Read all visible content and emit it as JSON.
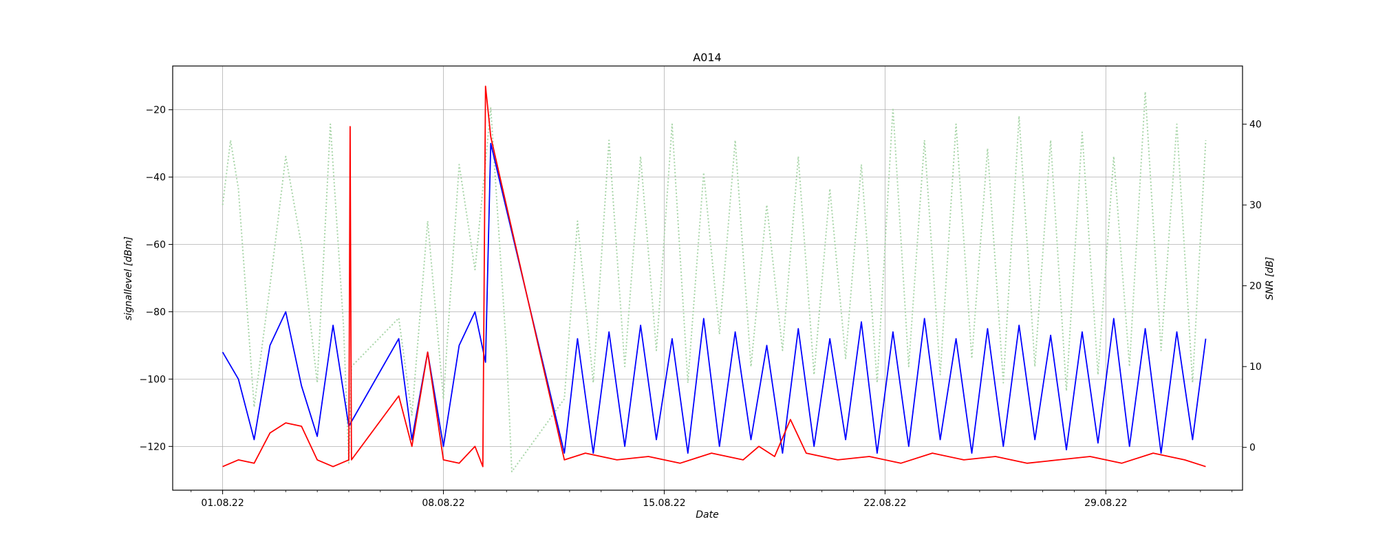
{
  "chart_data": {
    "type": "line",
    "title": "A014",
    "xlabel": "Date",
    "ylabel_left": "signallevel [dBm]",
    "ylabel_right": "SNR [dB]",
    "x_range": [
      "2022-07-30T10:00",
      "2022-09-02T08:00"
    ],
    "ylim_left": [
      -133,
      -7
    ],
    "ylim_right": [
      -5.3,
      47.2
    ],
    "x_ticks": [
      {
        "date": "2022-08-01",
        "label": "01.08.22"
      },
      {
        "date": "2022-08-08",
        "label": "08.08.22"
      },
      {
        "date": "2022-08-15",
        "label": "15.08.22"
      },
      {
        "date": "2022-08-22",
        "label": "22.08.22"
      },
      {
        "date": "2022-08-29",
        "label": "29.08.22"
      }
    ],
    "y_ticks_left": [
      -120,
      -100,
      -80,
      -60,
      -40,
      -20
    ],
    "y_ticks_right": [
      0,
      10,
      20,
      30,
      40
    ],
    "grid": true,
    "series": [
      {
        "color": "#a8d5a8",
        "dash": "dotted",
        "axis": "right",
        "points": [
          [
            "2022-08-01T00:00",
            30
          ],
          [
            "2022-08-01T06:00",
            38
          ],
          [
            "2022-08-01T12:00",
            32
          ],
          [
            "2022-08-02T00:00",
            5
          ],
          [
            "2022-08-02T12:00",
            20
          ],
          [
            "2022-08-03T00:00",
            36
          ],
          [
            "2022-08-03T12:00",
            25
          ],
          [
            "2022-08-04T00:00",
            8
          ],
          [
            "2022-08-04T10:00",
            40
          ],
          [
            "2022-08-04T20:00",
            15
          ],
          [
            "2022-08-05T00:00",
            -2
          ],
          [
            "2022-08-05T02:00",
            10
          ],
          [
            "2022-08-06T14:00",
            16
          ],
          [
            "2022-08-07T00:00",
            4
          ],
          [
            "2022-08-07T12:00",
            28
          ],
          [
            "2022-08-08T00:00",
            6
          ],
          [
            "2022-08-08T12:00",
            35
          ],
          [
            "2022-08-09T00:00",
            22
          ],
          [
            "2022-08-09T12:00",
            42
          ],
          [
            "2022-08-10T00:00",
            12
          ],
          [
            "2022-08-10T04:00",
            -3
          ],
          [
            "2022-08-11T20:00",
            6
          ],
          [
            "2022-08-12T06:00",
            28
          ],
          [
            "2022-08-12T18:00",
            8
          ],
          [
            "2022-08-13T06:00",
            38
          ],
          [
            "2022-08-13T18:00",
            10
          ],
          [
            "2022-08-14T06:00",
            36
          ],
          [
            "2022-08-14T18:00",
            12
          ],
          [
            "2022-08-15T06:00",
            40
          ],
          [
            "2022-08-15T18:00",
            8
          ],
          [
            "2022-08-16T06:00",
            34
          ],
          [
            "2022-08-16T18:00",
            14
          ],
          [
            "2022-08-17T06:00",
            38
          ],
          [
            "2022-08-17T18:00",
            10
          ],
          [
            "2022-08-18T06:00",
            30
          ],
          [
            "2022-08-18T18:00",
            12
          ],
          [
            "2022-08-19T06:00",
            36
          ],
          [
            "2022-08-19T18:00",
            9
          ],
          [
            "2022-08-20T06:00",
            32
          ],
          [
            "2022-08-20T18:00",
            11
          ],
          [
            "2022-08-21T06:00",
            35
          ],
          [
            "2022-08-21T18:00",
            8
          ],
          [
            "2022-08-22T06:00",
            42
          ],
          [
            "2022-08-22T18:00",
            10
          ],
          [
            "2022-08-23T06:00",
            38
          ],
          [
            "2022-08-23T18:00",
            9
          ],
          [
            "2022-08-24T06:00",
            40
          ],
          [
            "2022-08-24T18:00",
            11
          ],
          [
            "2022-08-25T06:00",
            37
          ],
          [
            "2022-08-25T18:00",
            8
          ],
          [
            "2022-08-26T06:00",
            41
          ],
          [
            "2022-08-26T18:00",
            10
          ],
          [
            "2022-08-27T06:00",
            38
          ],
          [
            "2022-08-27T18:00",
            7
          ],
          [
            "2022-08-28T06:00",
            39
          ],
          [
            "2022-08-28T18:00",
            9
          ],
          [
            "2022-08-29T06:00",
            36
          ],
          [
            "2022-08-29T18:00",
            10
          ],
          [
            "2022-08-30T06:00",
            44
          ],
          [
            "2022-08-30T18:00",
            12
          ],
          [
            "2022-08-31T06:00",
            40
          ],
          [
            "2022-08-31T18:00",
            8
          ],
          [
            "2022-09-01T04:00",
            38
          ]
        ]
      },
      {
        "color": "#0000ff",
        "dash": "solid",
        "axis": "left",
        "points": [
          [
            "2022-08-01T00:00",
            -92
          ],
          [
            "2022-08-01T12:00",
            -100
          ],
          [
            "2022-08-02T00:00",
            -118
          ],
          [
            "2022-08-02T12:00",
            -90
          ],
          [
            "2022-08-03T00:00",
            -80
          ],
          [
            "2022-08-03T12:00",
            -102
          ],
          [
            "2022-08-04T00:00",
            -117
          ],
          [
            "2022-08-04T12:00",
            -84
          ],
          [
            "2022-08-05T00:00",
            -114
          ],
          [
            "2022-08-06T14:00",
            -88
          ],
          [
            "2022-08-07T00:00",
            -118
          ],
          [
            "2022-08-07T12:00",
            -92
          ],
          [
            "2022-08-08T00:00",
            -120
          ],
          [
            "2022-08-08T12:00",
            -90
          ],
          [
            "2022-08-09T00:00",
            -80
          ],
          [
            "2022-08-09T08:00",
            -95
          ],
          [
            "2022-08-09T12:00",
            -30
          ],
          [
            "2022-08-11T20:00",
            -122
          ],
          [
            "2022-08-12T06:00",
            -88
          ],
          [
            "2022-08-12T18:00",
            -122
          ],
          [
            "2022-08-13T06:00",
            -86
          ],
          [
            "2022-08-13T18:00",
            -120
          ],
          [
            "2022-08-14T06:00",
            -84
          ],
          [
            "2022-08-14T18:00",
            -118
          ],
          [
            "2022-08-15T06:00",
            -88
          ],
          [
            "2022-08-15T18:00",
            -122
          ],
          [
            "2022-08-16T06:00",
            -82
          ],
          [
            "2022-08-16T18:00",
            -120
          ],
          [
            "2022-08-17T06:00",
            -86
          ],
          [
            "2022-08-17T18:00",
            -118
          ],
          [
            "2022-08-18T06:00",
            -90
          ],
          [
            "2022-08-18T18:00",
            -122
          ],
          [
            "2022-08-19T06:00",
            -85
          ],
          [
            "2022-08-19T18:00",
            -120
          ],
          [
            "2022-08-20T06:00",
            -88
          ],
          [
            "2022-08-20T18:00",
            -118
          ],
          [
            "2022-08-21T06:00",
            -83
          ],
          [
            "2022-08-21T18:00",
            -122
          ],
          [
            "2022-08-22T06:00",
            -86
          ],
          [
            "2022-08-22T18:00",
            -120
          ],
          [
            "2022-08-23T06:00",
            -82
          ],
          [
            "2022-08-23T18:00",
            -118
          ],
          [
            "2022-08-24T06:00",
            -88
          ],
          [
            "2022-08-24T18:00",
            -122
          ],
          [
            "2022-08-25T06:00",
            -85
          ],
          [
            "2022-08-25T18:00",
            -120
          ],
          [
            "2022-08-26T06:00",
            -84
          ],
          [
            "2022-08-26T18:00",
            -118
          ],
          [
            "2022-08-27T06:00",
            -87
          ],
          [
            "2022-08-27T18:00",
            -121
          ],
          [
            "2022-08-28T06:00",
            -86
          ],
          [
            "2022-08-28T18:00",
            -119
          ],
          [
            "2022-08-29T06:00",
            -82
          ],
          [
            "2022-08-29T18:00",
            -120
          ],
          [
            "2022-08-30T06:00",
            -85
          ],
          [
            "2022-08-30T18:00",
            -122
          ],
          [
            "2022-08-31T06:00",
            -86
          ],
          [
            "2022-08-31T18:00",
            -118
          ],
          [
            "2022-09-01T04:00",
            -88
          ]
        ]
      },
      {
        "color": "#ff0000",
        "dash": "solid",
        "axis": "left",
        "points": [
          [
            "2022-08-01T00:00",
            -126
          ],
          [
            "2022-08-01T12:00",
            -124
          ],
          [
            "2022-08-02T00:00",
            -125
          ],
          [
            "2022-08-02T12:00",
            -116
          ],
          [
            "2022-08-03T00:00",
            -113
          ],
          [
            "2022-08-03T12:00",
            -114
          ],
          [
            "2022-08-04T00:00",
            -124
          ],
          [
            "2022-08-04T12:00",
            -126
          ],
          [
            "2022-08-05T00:00",
            -124
          ],
          [
            "2022-08-05T01:00",
            -25
          ],
          [
            "2022-08-05T02:00",
            -124
          ],
          [
            "2022-08-06T14:00",
            -105
          ],
          [
            "2022-08-07T00:00",
            -120
          ],
          [
            "2022-08-07T12:00",
            -92
          ],
          [
            "2022-08-08T00:00",
            -124
          ],
          [
            "2022-08-08T12:00",
            -125
          ],
          [
            "2022-08-09T00:00",
            -120
          ],
          [
            "2022-08-09T06:00",
            -126
          ],
          [
            "2022-08-09T08:00",
            -13
          ],
          [
            "2022-08-09T12:00",
            -28
          ],
          [
            "2022-08-11T20:00",
            -124
          ],
          [
            "2022-08-12T12:00",
            -122
          ],
          [
            "2022-08-13T12:00",
            -124
          ],
          [
            "2022-08-14T12:00",
            -123
          ],
          [
            "2022-08-15T12:00",
            -125
          ],
          [
            "2022-08-16T12:00",
            -122
          ],
          [
            "2022-08-17T12:00",
            -124
          ],
          [
            "2022-08-18T00:00",
            -120
          ],
          [
            "2022-08-18T12:00",
            -123
          ],
          [
            "2022-08-19T00:00",
            -112
          ],
          [
            "2022-08-19T12:00",
            -122
          ],
          [
            "2022-08-20T12:00",
            -124
          ],
          [
            "2022-08-21T12:00",
            -123
          ],
          [
            "2022-08-22T12:00",
            -125
          ],
          [
            "2022-08-23T12:00",
            -122
          ],
          [
            "2022-08-24T12:00",
            -124
          ],
          [
            "2022-08-25T12:00",
            -123
          ],
          [
            "2022-08-26T12:00",
            -125
          ],
          [
            "2022-08-27T12:00",
            -124
          ],
          [
            "2022-08-28T12:00",
            -123
          ],
          [
            "2022-08-29T12:00",
            -125
          ],
          [
            "2022-08-30T12:00",
            -122
          ],
          [
            "2022-08-31T12:00",
            -124
          ],
          [
            "2022-09-01T04:00",
            -126
          ]
        ]
      }
    ]
  }
}
